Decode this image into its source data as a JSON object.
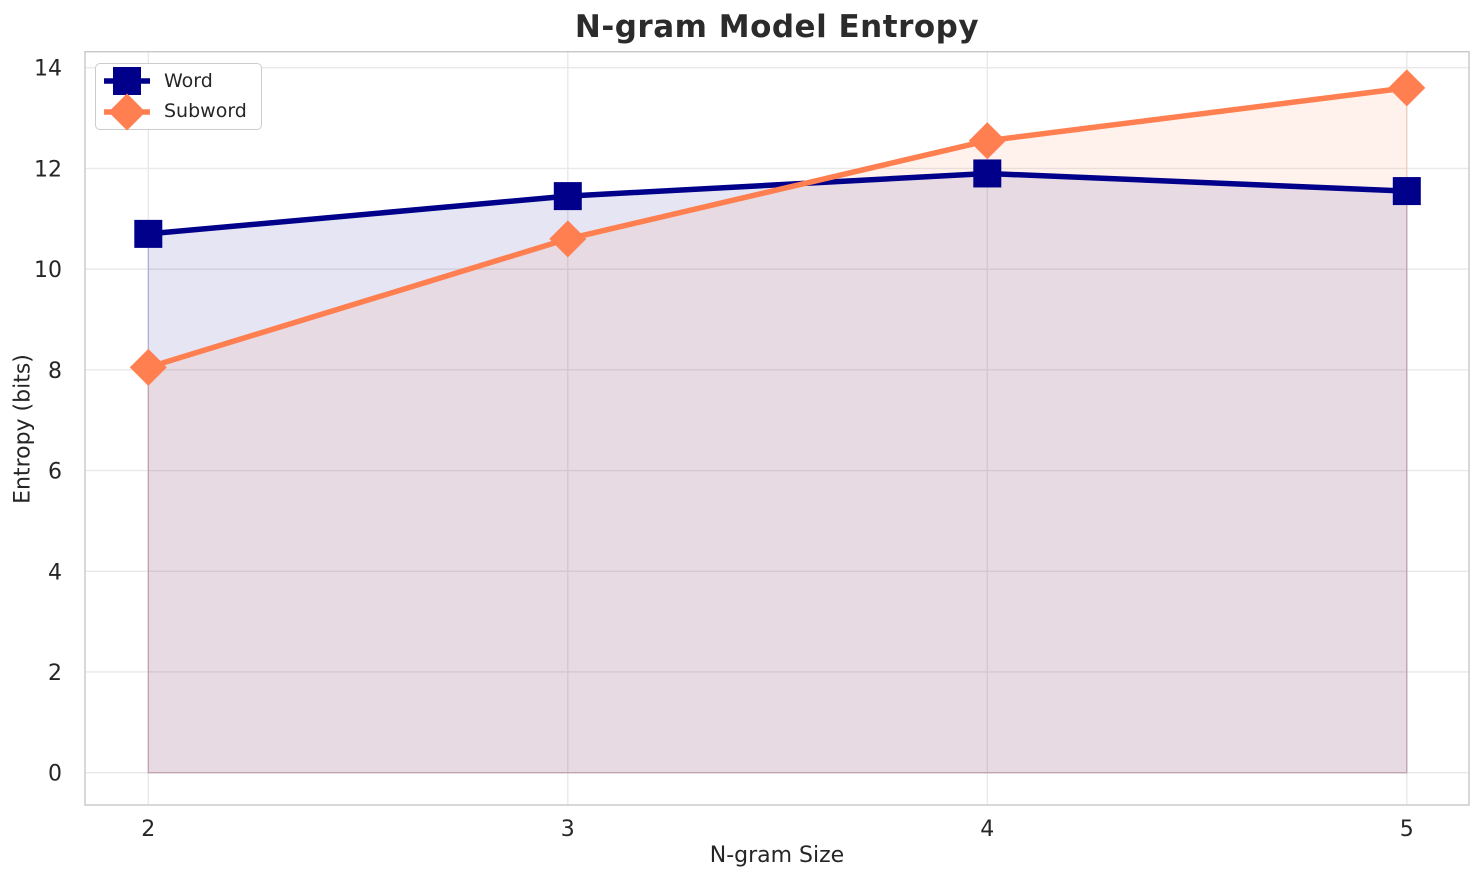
{
  "chart_data": {
    "type": "line",
    "title": "N-gram Model Entropy",
    "xlabel": "N-gram Size",
    "ylabel": "Entropy (bits)",
    "x": [
      2,
      3,
      4,
      5
    ],
    "x_tick_labels": [
      "2",
      "3",
      "4",
      "5"
    ],
    "y_ticks": [
      0,
      2,
      4,
      6,
      8,
      10,
      12,
      14
    ],
    "ylim": [
      0,
      14.3
    ],
    "grid": true,
    "legend_position": "upper-left",
    "fill_opacity": 0.1,
    "series": [
      {
        "name": "Word",
        "marker": "square",
        "color": "#00008B",
        "values": [
          10.7,
          11.45,
          11.9,
          11.55
        ],
        "area_fill": true
      },
      {
        "name": "Subword",
        "marker": "diamond",
        "color": "#FF7F50",
        "values": [
          8.05,
          10.6,
          12.55,
          13.6
        ],
        "area_fill": true
      }
    ]
  },
  "styles": {
    "grid_color": "#E9E9E9",
    "spine_color": "#C8C8C8",
    "tick_color": "#262626",
    "title_color": "#2B2B2B",
    "background": "#FFFFFF"
  }
}
